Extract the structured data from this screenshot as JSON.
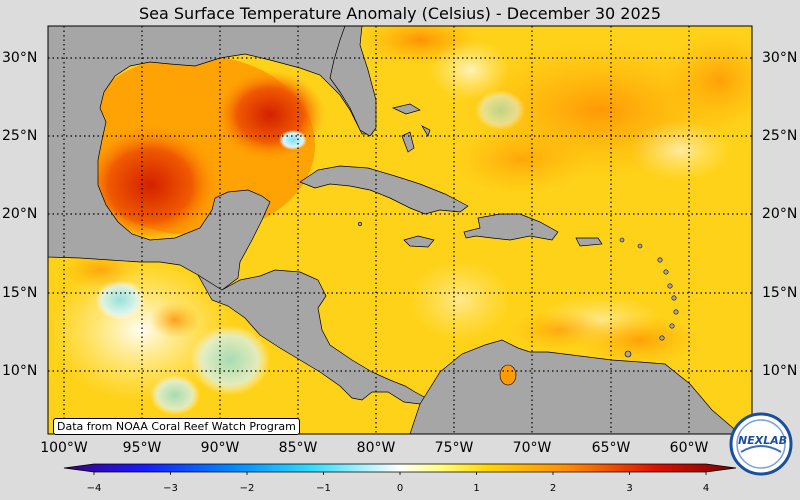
{
  "title": "Sea Surface Temperature Anomaly (Celsius) - December 30 2025",
  "credit": "Data from NOAA Coral Reef Watch Program",
  "logo_text": "NEXLAB",
  "lat_labels": [
    "30°N",
    "25°N",
    "20°N",
    "15°N",
    "10°N"
  ],
  "lon_labels": [
    "100°W",
    "95°W",
    "90°W",
    "85°W",
    "80°W",
    "75°W",
    "70°W",
    "65°W",
    "60°W"
  ],
  "colorbar": {
    "min": -4,
    "max": 4,
    "ticks": [
      "−4",
      "−3",
      "−2",
      "−1",
      "0",
      "1",
      "2",
      "3",
      "4"
    ]
  },
  "colors": {
    "land": "#a6a6a6",
    "ocean_base": "#ffd21a",
    "warm": "#ff9a00",
    "hot": "#e43600",
    "cool": "#ffffff",
    "cold": "#8fe6f5"
  }
}
